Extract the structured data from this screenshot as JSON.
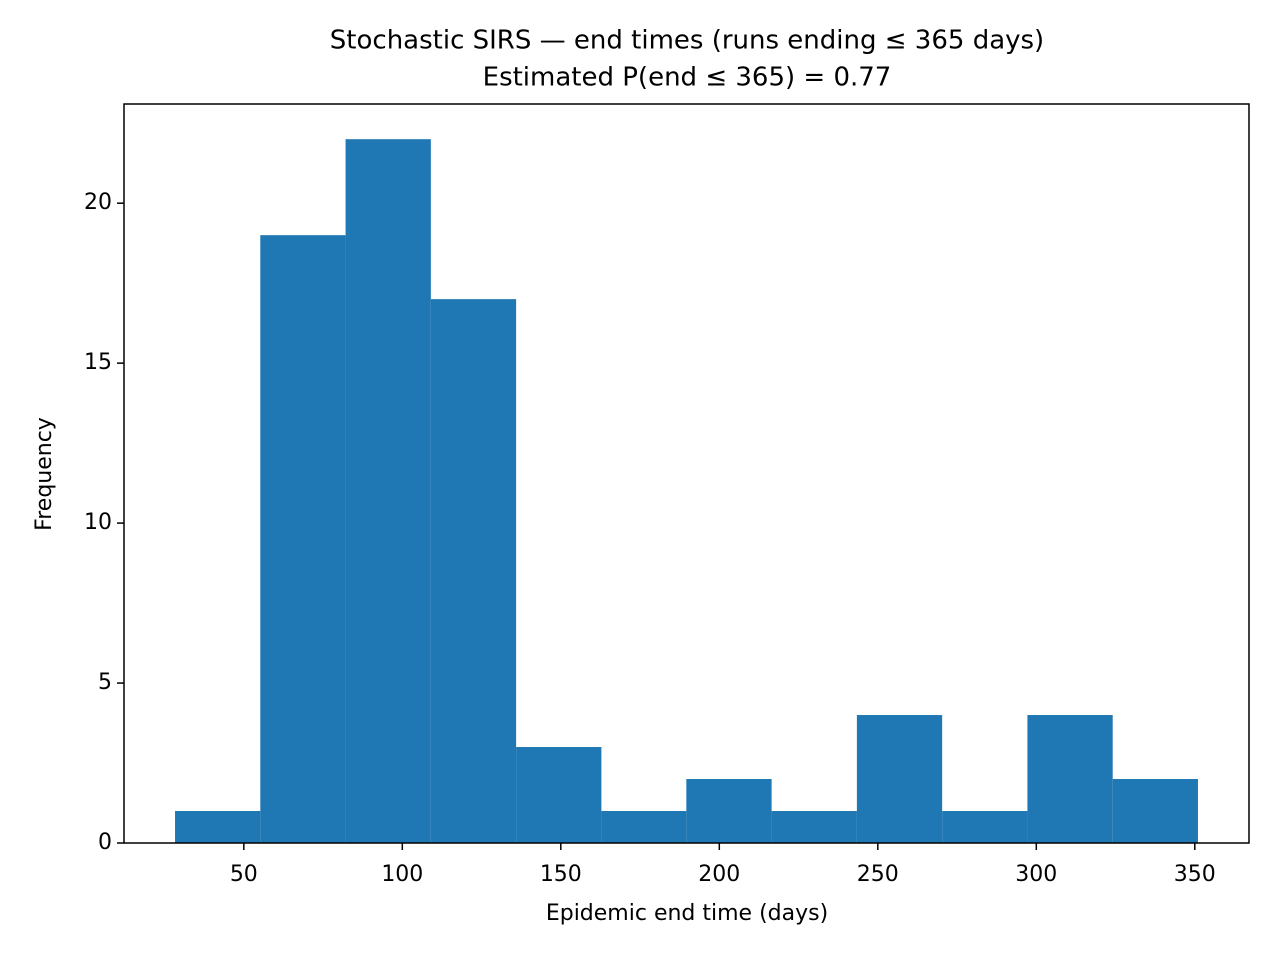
{
  "chart_data": {
    "type": "histogram",
    "title": "Stochastic SIRS — end times (runs ending ≤ 365 days)",
    "subtitle": "Estimated P(end ≤ 365) = 0.77",
    "x_label": "Epidemic end time (days)",
    "y_label": "Frequency",
    "bins": [
      28.3,
      55.2,
      82.1,
      109.0,
      135.9,
      162.8,
      189.6,
      216.5,
      243.4,
      270.3,
      297.2,
      324.1,
      351.0
    ],
    "values": [
      1,
      19,
      22,
      17,
      3,
      1,
      2,
      1,
      4,
      1,
      4,
      2
    ],
    "color": "#1f77b4",
    "xlim": [
      12.2,
      367.1
    ],
    "xticks": [
      50,
      100,
      150,
      200,
      250,
      300,
      350
    ],
    "ylim": [
      0,
      23.1
    ],
    "yticks": [
      0,
      5,
      10,
      15,
      20
    ]
  }
}
